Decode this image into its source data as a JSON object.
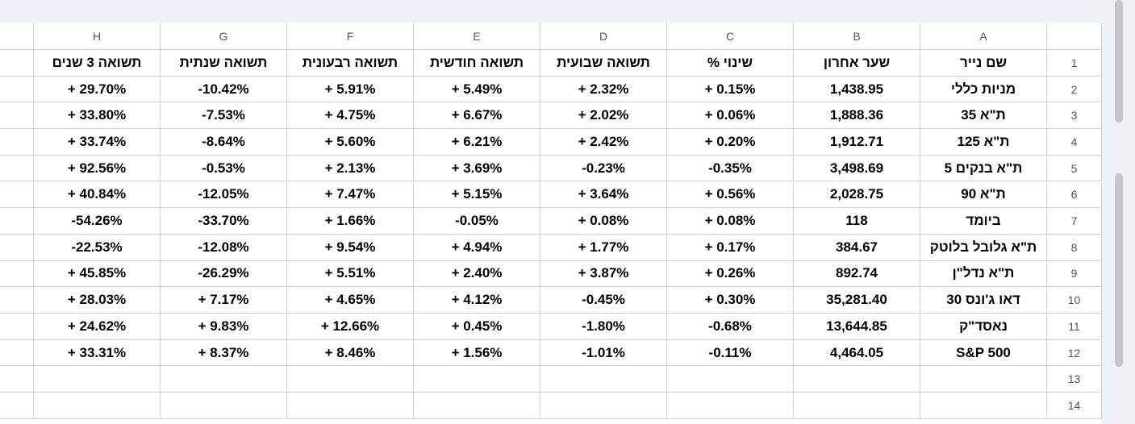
{
  "sheet": {
    "column_letters": [
      "A",
      "B",
      "C",
      "D",
      "E",
      "F",
      "G",
      "H"
    ],
    "rows": [
      {
        "number": "1",
        "cells": [
          "שם נייר",
          "שער אחרון",
          "שינוי %",
          "תשואה שבועית",
          "תשואה חודשית",
          "תשואה רבעונית",
          "תשואה שנתית",
          "תשואה 3 שנים"
        ]
      },
      {
        "number": "2",
        "cells": [
          "מניות כללי",
          "1,438.95",
          "+ 0.15%",
          "+ 2.32%",
          "+ 5.49%",
          "+ 5.91%",
          "-10.42%",
          "+ 29.70%"
        ]
      },
      {
        "number": "3",
        "cells": [
          "ת\"א 35",
          "1,888.36",
          "+ 0.06%",
          "+ 2.02%",
          "+ 6.67%",
          "+ 4.75%",
          "-7.53%",
          "+ 33.80%"
        ]
      },
      {
        "number": "4",
        "cells": [
          "ת\"א 125",
          "1,912.71",
          "+ 0.20%",
          "+ 2.42%",
          "+ 6.21%",
          "+ 5.60%",
          "-8.64%",
          "+ 33.74%"
        ]
      },
      {
        "number": "5",
        "cells": [
          "ת\"א בנקים 5",
          "3,498.69",
          "-0.35%",
          "-0.23%",
          "+ 3.69%",
          "+ 2.13%",
          "-0.53%",
          "+ 92.56%"
        ]
      },
      {
        "number": "6",
        "cells": [
          "ת\"א 90",
          "2,028.75",
          "+ 0.56%",
          "+ 3.64%",
          "+ 5.15%",
          "+ 7.47%",
          "-12.05%",
          "+ 40.84%"
        ]
      },
      {
        "number": "7",
        "cells": [
          "ביומד",
          "118",
          "+ 0.08%",
          "+ 0.08%",
          "-0.05%",
          "+ 1.66%",
          "-33.70%",
          "-54.26%"
        ]
      },
      {
        "number": "8",
        "cells": [
          "ת\"א גלובל בלוטק",
          "384.67",
          "+ 0.17%",
          "+ 1.77%",
          "+ 4.94%",
          "+ 9.54%",
          "-12.08%",
          "-22.53%"
        ]
      },
      {
        "number": "9",
        "cells": [
          "ת\"א נדל\"ן",
          "892.74",
          "+ 0.26%",
          "+ 3.87%",
          "+ 2.40%",
          "+ 5.51%",
          "-26.29%",
          "+ 45.85%"
        ]
      },
      {
        "number": "10",
        "cells": [
          "דאו ג'ונס 30",
          "35,281.40",
          "+ 0.30%",
          "-0.45%",
          "+ 4.12%",
          "+ 4.65%",
          "+ 7.17%",
          "+ 28.03%"
        ]
      },
      {
        "number": "11",
        "cells": [
          "נאסד\"ק",
          "13,644.85",
          "-0.68%",
          "-1.80%",
          "+ 0.45%",
          "+ 12.66%",
          "+ 9.83%",
          "+ 24.62%"
        ]
      },
      {
        "number": "12",
        "cells": [
          "S&P 500",
          "4,464.05",
          "-0.11%",
          "-1.01%",
          "+ 1.56%",
          "+ 8.46%",
          "+ 8.37%",
          "+ 33.31%"
        ]
      },
      {
        "number": "13",
        "cells": []
      },
      {
        "number": "14",
        "cells": []
      }
    ]
  }
}
